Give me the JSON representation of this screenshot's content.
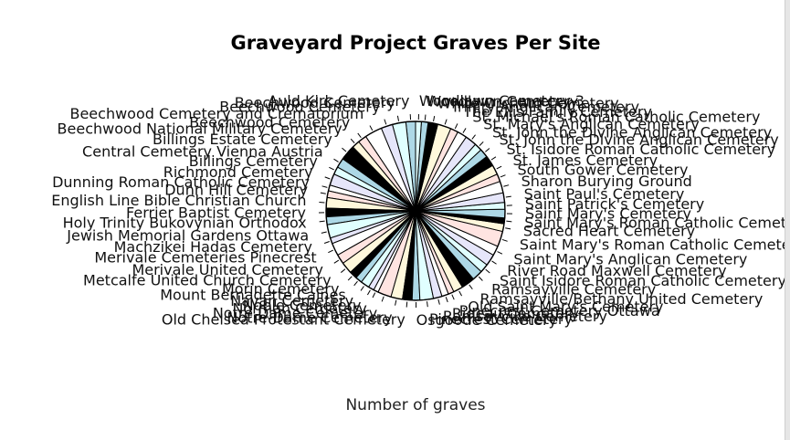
{
  "chart_data": {
    "type": "pie",
    "title": "Graveyard Project Graves Per Site",
    "xlabel": "Number of graves",
    "ylabel": "",
    "colors": [
      "#add8e6",
      "#e0ffff",
      "#e6e6fa",
      "#ffffff",
      "#ffe4e1",
      "#fff8dc",
      "#000000"
    ],
    "edge_color": "#000000",
    "labels": [
      "Auld Kirk Cemetery",
      "Beechwood Cemetery",
      "Beechwood Cemetery",
      "Beechwood Cemetery and Crematorium",
      "Beechwood Cemetery",
      "Beechwood National Military Cemetery",
      "Billings Estate Cemetery",
      "Central Cemetery Vienna Austria",
      "Billings Cemetery",
      "Richmond Cemetery",
      "Dunning Roman Catholic Cemetery",
      "Dunn Hill Cemetery",
      "English Line Bible Christian Church",
      "Ferrier Baptist Cemetery",
      "Holy Trinity Bukovynian Orthodox",
      "Jewish Memorial Gardens Ottawa",
      "Machzikei Hadas Cemetery",
      "Merivale Cemeteries Pinecrest",
      "Merivale United Cemetery",
      "Metcalfe United Church Cemetery",
      "Morin Cemetery",
      "Mount Bernadette Caines",
      "Navan Cemetery",
      "Noble Cemetery",
      "Norman Cemetery",
      "Notre Dame Cemetery",
      "Notre-Dame Cemetery",
      "Old Chelsea Protestant Cemetery",
      "Osgoode Cemetery",
      "Pinecrest Cemetery",
      "Ramsayville Cemetery",
      "Rideau Cemetery",
      "Pinecrest Cemetery Ottawa",
      "Old Saint Mary's Cemetery",
      "Ramsayville/Bethany United Cemetery",
      "Ramsayville Cemetery",
      "Saint Isidore Roman Catholic Cemetery",
      "River Road Maxwell Cemetery",
      "Saint Mary's Anglican Cemetery",
      "Saint Mary's Roman Catholic Cemetery",
      "Sacred Heart Cemetery",
      "Saint Mary's Roman Catholic Cemetery",
      "Saint Mary's Cemetery",
      "Saint Patrick's Cemetery",
      "Saint Paul's Cemetery",
      "Sharon Burying Ground",
      "South Gower Cemetery",
      "St. James Cemetery",
      "St. Isidore Roman Catholic Cemetery",
      "St. John the Divine Anglican Cemetery",
      "St. John the Divine Anglican Cemetery",
      "St. Mary's Anglican Cemetery",
      "St. Michael's Roman Catholic Cemetery",
      "The Ellis Family Cemetery",
      "Trinity Anglican Cemetery",
      "White Orchard Cemetery",
      "Woodlawn Cemetery",
      "Woodlawn Cemetery 3"
    ],
    "values": [
      10,
      14,
      12,
      18,
      9,
      8,
      16,
      10,
      8,
      12,
      6,
      7,
      11,
      9,
      8,
      14,
      6,
      13,
      10,
      12,
      8,
      7,
      9,
      6,
      5,
      14,
      12,
      10,
      8,
      14,
      9,
      7,
      6,
      10,
      14,
      11,
      9,
      12,
      10,
      16,
      8,
      6,
      9,
      7,
      10,
      12,
      8,
      10,
      11,
      9,
      8,
      12,
      10,
      8,
      14,
      10,
      7,
      6
    ]
  }
}
